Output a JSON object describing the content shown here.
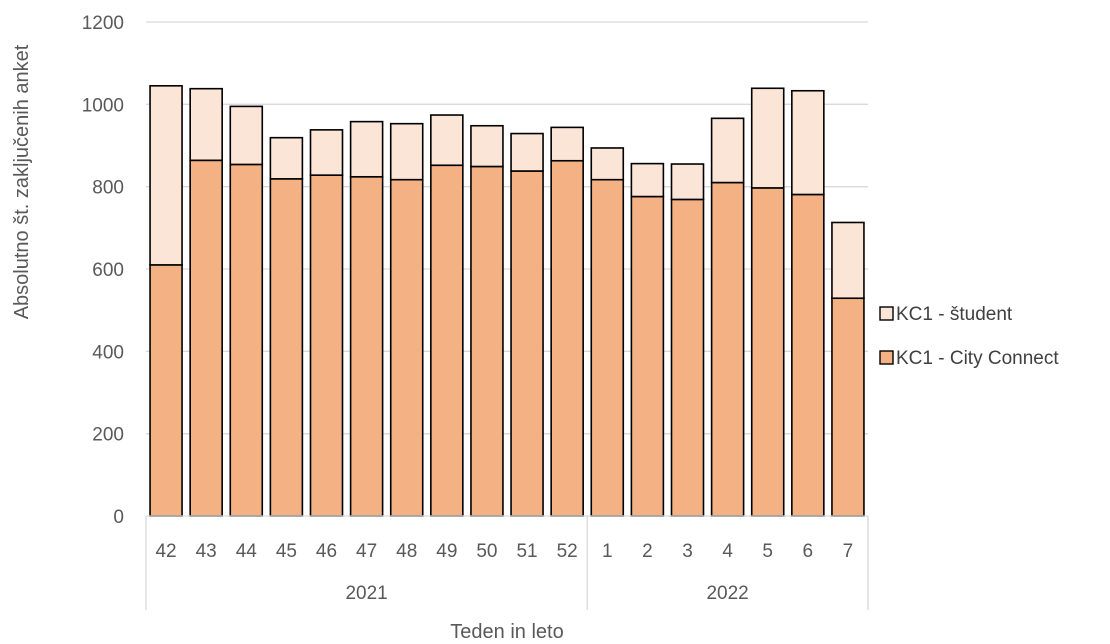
{
  "chart_data": {
    "type": "bar",
    "stacked": true,
    "categories": [
      "42",
      "43",
      "44",
      "45",
      "46",
      "47",
      "48",
      "49",
      "50",
      "51",
      "52",
      "1",
      "2",
      "3",
      "4",
      "5",
      "6",
      "7"
    ],
    "groups": [
      {
        "label": "2021",
        "count": 11
      },
      {
        "label": "2022",
        "count": 7
      }
    ],
    "series": [
      {
        "name": "KC1 - City Connect",
        "color": "#F4B183",
        "values": [
          610,
          864,
          854,
          819,
          828,
          824,
          817,
          852,
          849,
          838,
          863,
          817,
          776,
          769,
          810,
          797,
          781,
          529
        ]
      },
      {
        "name": "KC1 - študent",
        "color": "#FBE5D6",
        "values": [
          435,
          174,
          141,
          100,
          110,
          134,
          136,
          122,
          99,
          91,
          81,
          77,
          80,
          86,
          156,
          242,
          252,
          184
        ]
      }
    ],
    "ylim": [
      0,
      1200
    ],
    "yticks": [
      0,
      200,
      400,
      600,
      800,
      1000,
      1200
    ],
    "xlabel": "Teden in leto",
    "ylabel": "Absolutno št. zaključenih anket",
    "grid": true,
    "legend_position": "right"
  }
}
